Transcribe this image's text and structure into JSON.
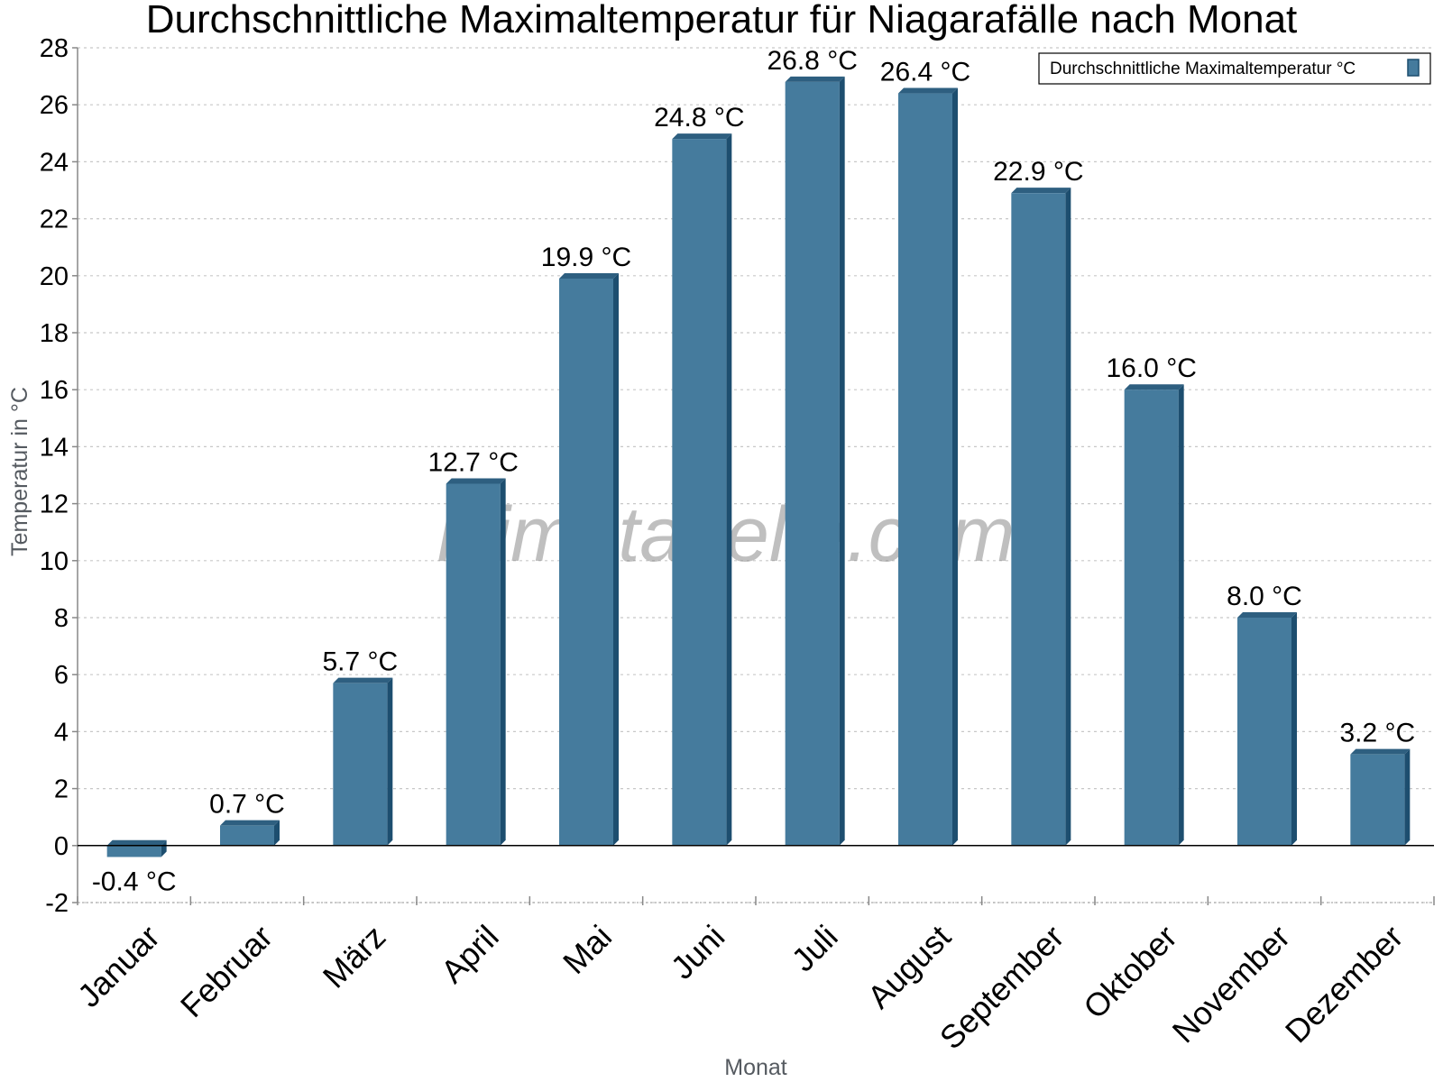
{
  "chart_data": {
    "type": "bar",
    "title": "Durchschnittliche Maximaltemperatur für Niagarafälle nach Monat",
    "xlabel": "Monat",
    "ylabel": "Temperatur in °C",
    "categories": [
      "Januar",
      "Februar",
      "März",
      "April",
      "Mai",
      "Juni",
      "Juli",
      "August",
      "September",
      "Oktober",
      "November",
      "Dezember"
    ],
    "series": [
      {
        "name": "Durchschnittliche Maximaltemperatur °C",
        "values": [
          -0.4,
          0.7,
          5.7,
          12.7,
          19.9,
          24.8,
          26.8,
          26.4,
          22.9,
          16.0,
          8.0,
          3.2
        ],
        "labels": [
          "-0.4 °C",
          "0.7 °C",
          "5.7 °C",
          "12.7 °C",
          "19.9 °C",
          "24.8 °C",
          "26.8 °C",
          "26.4 °C",
          "22.9 °C",
          "16.0 °C",
          "8.0 °C",
          "3.2 °C"
        ]
      }
    ],
    "ylim": [
      -2,
      28
    ],
    "yticks": [
      -2,
      0,
      2,
      4,
      6,
      8,
      10,
      12,
      14,
      16,
      18,
      20,
      22,
      24,
      26,
      28
    ],
    "grid": true,
    "legend_position": "top-right",
    "colors": {
      "bar": "#457b9d",
      "bar_top": "#2e5f80",
      "bar_side": "#1d4e6f",
      "grid": "#c8c8c8",
      "axis": "#000000"
    },
    "watermark": "klimatabelle.com"
  }
}
